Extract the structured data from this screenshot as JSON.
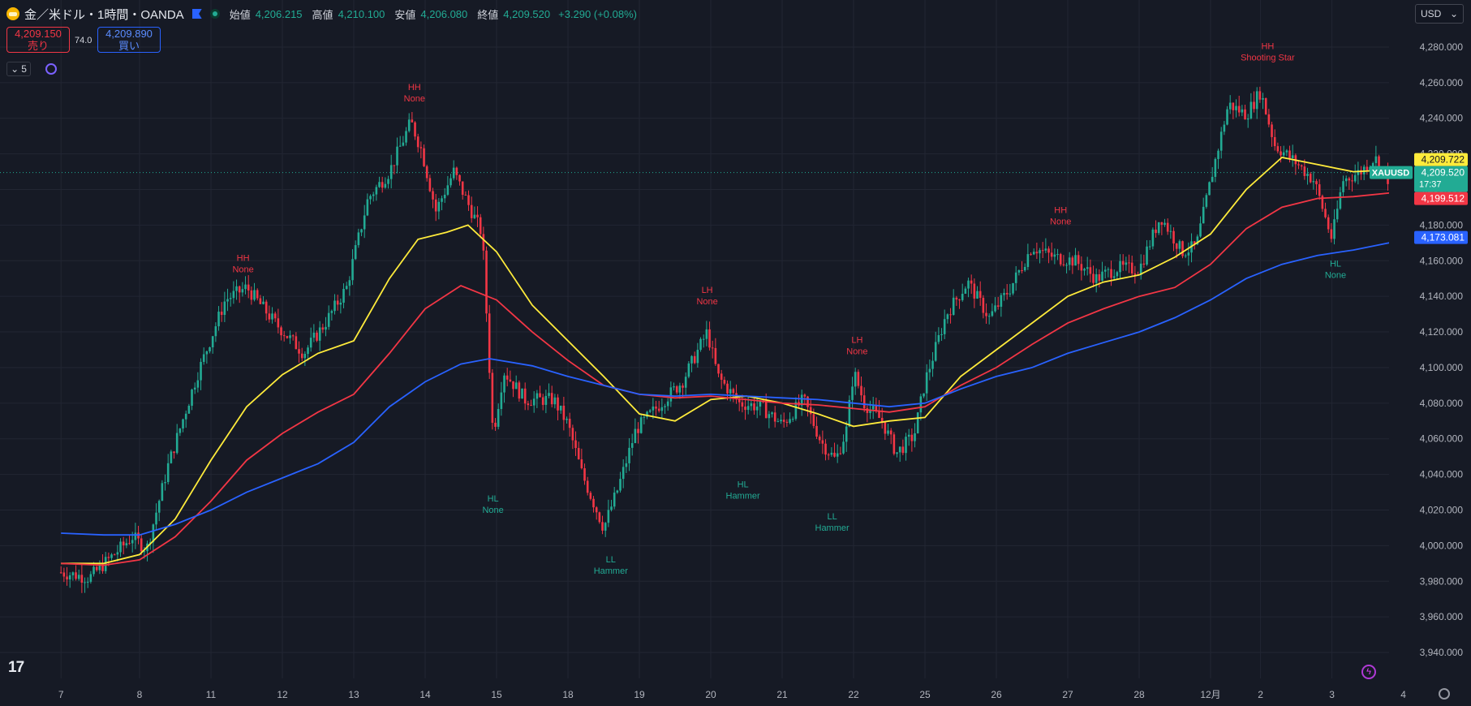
{
  "header": {
    "symbol_title": "金／米ドル・1時間・OANDA",
    "open_label": "始値",
    "open_value": "4,206.215",
    "high_label": "高値",
    "high_value": "4,210.100",
    "low_label": "安値",
    "low_value": "4,206.080",
    "close_label": "終値",
    "close_value": "4,209.520",
    "change": "+3.290 (+0.08%)",
    "icons": [
      "gold-coin-icon",
      "flag-icon",
      "market-open-dot-icon"
    ]
  },
  "trade": {
    "sell_price": "4,209.150",
    "sell_label": "売り",
    "spread": "74.0",
    "buy_price": "4,209.890",
    "buy_label": "買い"
  },
  "indicators": {
    "count": "5",
    "icons": [
      "chevron-down-icon",
      "indicator-sync-icon"
    ]
  },
  "currency_select": "USD",
  "logo_text": "17",
  "colors": {
    "background": "#161a25",
    "grid": "#222633",
    "up": "#22ab94",
    "down": "#f23645",
    "ma_fast": "#ffeb3b",
    "ma_mid": "#f23645",
    "ma_slow": "#2962ff",
    "text": "#b2b5be"
  },
  "chart_data": {
    "type": "candlestick",
    "symbol": "XAUUSD",
    "ylim": [
      3930,
      4290
    ],
    "y_ticks": [
      3940,
      3960,
      3980,
      4000,
      4020,
      4040,
      4060,
      4080,
      4100,
      4120,
      4140,
      4160,
      4180,
      4200,
      4220,
      4240,
      4260,
      4280
    ],
    "y_tick_labels": [
      "3,940.000",
      "3,960.000",
      "3,980.000",
      "4,000.000",
      "4,020.000",
      "4,040.000",
      "4,060.000",
      "4,080.000",
      "4,100.000",
      "4,120.000",
      "4,140.000",
      "4,160.000",
      "4,180.000",
      "4,200.000",
      "4,220.000",
      "4,240.000",
      "4,260.000",
      "4,280.000"
    ],
    "x_ticks": [
      {
        "label": "7",
        "t": -0.1
      },
      {
        "label": "8",
        "t": 1
      },
      {
        "label": "11",
        "t": 2
      },
      {
        "label": "12",
        "t": 3
      },
      {
        "label": "13",
        "t": 4
      },
      {
        "label": "14",
        "t": 5
      },
      {
        "label": "15",
        "t": 6
      },
      {
        "label": "18",
        "t": 7
      },
      {
        "label": "19",
        "t": 8
      },
      {
        "label": "20",
        "t": 9
      },
      {
        "label": "21",
        "t": 10
      },
      {
        "label": "22",
        "t": 11
      },
      {
        "label": "25",
        "t": 12
      },
      {
        "label": "26",
        "t": 13
      },
      {
        "label": "27",
        "t": 14
      },
      {
        "label": "28",
        "t": 15
      },
      {
        "label": "12月",
        "t": 16
      },
      {
        "label": "2",
        "t": 16.7
      },
      {
        "label": "3",
        "t": 17.7
      },
      {
        "label": "4",
        "t": 18.7
      }
    ],
    "price_path": [
      [
        -0.1,
        3985
      ],
      [
        0.3,
        3982
      ],
      [
        0.9,
        4005
      ],
      [
        1.1,
        3998
      ],
      [
        1.4,
        4045
      ],
      [
        1.8,
        4095
      ],
      [
        2.2,
        4138
      ],
      [
        2.5,
        4145
      ],
      [
        2.9,
        4125
      ],
      [
        3.3,
        4108
      ],
      [
        3.6,
        4125
      ],
      [
        3.9,
        4145
      ],
      [
        4.2,
        4195
      ],
      [
        4.5,
        4210
      ],
      [
        4.8,
        4238
      ],
      [
        4.95,
        4222
      ],
      [
        5.15,
        4188
      ],
      [
        5.4,
        4210
      ],
      [
        5.6,
        4192
      ],
      [
        5.8,
        4175
      ],
      [
        5.95,
        4062
      ],
      [
        6.1,
        4098
      ],
      [
        6.4,
        4082
      ],
      [
        6.8,
        4082
      ],
      [
        7.0,
        4068
      ],
      [
        7.2,
        4040
      ],
      [
        7.5,
        4010
      ],
      [
        7.7,
        4032
      ],
      [
        7.95,
        4065
      ],
      [
        8.3,
        4080
      ],
      [
        8.6,
        4092
      ],
      [
        8.95,
        4120
      ],
      [
        9.1,
        4095
      ],
      [
        9.4,
        4080
      ],
      [
        9.7,
        4078
      ],
      [
        10.0,
        4068
      ],
      [
        10.3,
        4082
      ],
      [
        10.55,
        4058
      ],
      [
        10.75,
        4048
      ],
      [
        10.9,
        4065
      ],
      [
        11.0,
        4098
      ],
      [
        11.15,
        4080
      ],
      [
        11.4,
        4070
      ],
      [
        11.6,
        4052
      ],
      [
        11.85,
        4062
      ],
      [
        12.0,
        4092
      ],
      [
        12.3,
        4130
      ],
      [
        12.6,
        4148
      ],
      [
        12.9,
        4128
      ],
      [
        13.2,
        4145
      ],
      [
        13.5,
        4168
      ],
      [
        13.8,
        4162
      ],
      [
        14.1,
        4160
      ],
      [
        14.4,
        4150
      ],
      [
        14.7,
        4156
      ],
      [
        15.0,
        4155
      ],
      [
        15.3,
        4185
      ],
      [
        15.6,
        4165
      ],
      [
        15.8,
        4168
      ],
      [
        16.0,
        4205
      ],
      [
        16.25,
        4248
      ],
      [
        16.5,
        4242
      ],
      [
        16.7,
        4255
      ],
      [
        16.9,
        4225
      ],
      [
        17.2,
        4215
      ],
      [
        17.45,
        4205
      ],
      [
        17.55,
        4192
      ],
      [
        17.7,
        4172
      ],
      [
        17.85,
        4205
      ],
      [
        18.1,
        4210
      ],
      [
        18.3,
        4218
      ],
      [
        18.5,
        4205
      ],
      [
        18.7,
        4235
      ],
      [
        18.85,
        4205
      ],
      [
        19.0,
        4209.52
      ]
    ],
    "moving_averages": [
      {
        "color_key": "ma_fast",
        "last_label": "4,209.722",
        "points": [
          [
            -0.1,
            3990
          ],
          [
            0.5,
            3990
          ],
          [
            1.0,
            3995
          ],
          [
            1.5,
            4015
          ],
          [
            2.0,
            4048
          ],
          [
            2.5,
            4078
          ],
          [
            3.0,
            4096
          ],
          [
            3.5,
            4108
          ],
          [
            4.0,
            4115
          ],
          [
            4.5,
            4150
          ],
          [
            4.9,
            4172
          ],
          [
            5.3,
            4176
          ],
          [
            5.6,
            4180
          ],
          [
            6.0,
            4165
          ],
          [
            6.5,
            4135
          ],
          [
            7.0,
            4115
          ],
          [
            7.5,
            4095
          ],
          [
            8.0,
            4074
          ],
          [
            8.5,
            4070
          ],
          [
            9.0,
            4082
          ],
          [
            9.5,
            4084
          ],
          [
            10.0,
            4080
          ],
          [
            10.5,
            4074
          ],
          [
            11.0,
            4067
          ],
          [
            11.5,
            4070
          ],
          [
            12.0,
            4072
          ],
          [
            12.5,
            4095
          ],
          [
            13.0,
            4110
          ],
          [
            13.5,
            4125
          ],
          [
            14.0,
            4140
          ],
          [
            14.5,
            4148
          ],
          [
            15.0,
            4152
          ],
          [
            15.5,
            4162
          ],
          [
            16.0,
            4175
          ],
          [
            16.5,
            4200
          ],
          [
            17.0,
            4218
          ],
          [
            17.5,
            4214
          ],
          [
            18.0,
            4210
          ],
          [
            18.5,
            4211
          ],
          [
            19.0,
            4209.72
          ]
        ]
      },
      {
        "color_key": "ma_mid",
        "last_label": "4,199.512",
        "points": [
          [
            -0.1,
            3990
          ],
          [
            0.5,
            3989
          ],
          [
            1.0,
            3992
          ],
          [
            1.5,
            4005
          ],
          [
            2.0,
            4025
          ],
          [
            2.5,
            4048
          ],
          [
            3.0,
            4063
          ],
          [
            3.5,
            4075
          ],
          [
            4.0,
            4085
          ],
          [
            4.5,
            4108
          ],
          [
            5.0,
            4133
          ],
          [
            5.5,
            4146
          ],
          [
            6.0,
            4138
          ],
          [
            6.5,
            4120
          ],
          [
            7.0,
            4104
          ],
          [
            7.5,
            4090
          ],
          [
            8.0,
            4085
          ],
          [
            8.5,
            4083
          ],
          [
            9.0,
            4084
          ],
          [
            9.5,
            4082
          ],
          [
            10.0,
            4080
          ],
          [
            10.5,
            4079
          ],
          [
            11.0,
            4077
          ],
          [
            11.5,
            4075
          ],
          [
            12.0,
            4078
          ],
          [
            12.5,
            4090
          ],
          [
            13.0,
            4100
          ],
          [
            13.5,
            4113
          ],
          [
            14.0,
            4125
          ],
          [
            14.5,
            4133
          ],
          [
            15.0,
            4140
          ],
          [
            15.5,
            4145
          ],
          [
            16.0,
            4158
          ],
          [
            16.5,
            4178
          ],
          [
            17.0,
            4190
          ],
          [
            17.5,
            4195
          ],
          [
            18.0,
            4196
          ],
          [
            18.5,
            4198
          ],
          [
            19.0,
            4199.51
          ]
        ]
      },
      {
        "color_key": "ma_slow",
        "last_label": "4,173.081",
        "points": [
          [
            -0.1,
            4007
          ],
          [
            0.5,
            4006
          ],
          [
            1.0,
            4006
          ],
          [
            1.5,
            4012
          ],
          [
            2.0,
            4020
          ],
          [
            2.5,
            4030
          ],
          [
            3.0,
            4038
          ],
          [
            3.5,
            4046
          ],
          [
            4.0,
            4058
          ],
          [
            4.5,
            4078
          ],
          [
            5.0,
            4092
          ],
          [
            5.5,
            4102
          ],
          [
            5.9,
            4105
          ],
          [
            6.5,
            4101
          ],
          [
            7.0,
            4095
          ],
          [
            7.5,
            4090
          ],
          [
            8.0,
            4085
          ],
          [
            8.5,
            4084
          ],
          [
            9.0,
            4085
          ],
          [
            9.5,
            4084
          ],
          [
            10.0,
            4083
          ],
          [
            10.5,
            4082
          ],
          [
            11.0,
            4080
          ],
          [
            11.5,
            4078
          ],
          [
            12.0,
            4080
          ],
          [
            12.5,
            4088
          ],
          [
            13.0,
            4095
          ],
          [
            13.5,
            4100
          ],
          [
            14.0,
            4108
          ],
          [
            14.5,
            4114
          ],
          [
            15.0,
            4120
          ],
          [
            15.5,
            4128
          ],
          [
            16.0,
            4138
          ],
          [
            16.5,
            4150
          ],
          [
            17.0,
            4158
          ],
          [
            17.5,
            4163
          ],
          [
            18.0,
            4166
          ],
          [
            18.5,
            4170
          ],
          [
            19.0,
            4173.08
          ]
        ]
      }
    ],
    "last_price": {
      "value": "4,209.520",
      "countdown": "17:37",
      "symbol": "XAUUSD"
    },
    "pivot_labels": [
      {
        "t": 2.45,
        "price": 4148,
        "above": true,
        "kind": "HH",
        "pattern": "None"
      },
      {
        "t": 4.85,
        "price": 4244,
        "above": true,
        "kind": "HH",
        "pattern": "None"
      },
      {
        "t": 5.95,
        "price": 4032,
        "above": false,
        "kind": "HL",
        "pattern": "None"
      },
      {
        "t": 7.6,
        "price": 3998,
        "above": false,
        "kind": "LL",
        "pattern": "Hammer"
      },
      {
        "t": 8.95,
        "price": 4130,
        "above": true,
        "kind": "LH",
        "pattern": "None"
      },
      {
        "t": 9.45,
        "price": 4040,
        "above": false,
        "kind": "HL",
        "pattern": "Hammer"
      },
      {
        "t": 10.7,
        "price": 4022,
        "above": false,
        "kind": "LL",
        "pattern": "Hammer"
      },
      {
        "t": 11.05,
        "price": 4102,
        "above": true,
        "kind": "LH",
        "pattern": "None"
      },
      {
        "t": 13.9,
        "price": 4175,
        "above": true,
        "kind": "HH",
        "pattern": "None"
      },
      {
        "t": 16.8,
        "price": 4267,
        "above": true,
        "kind": "HH",
        "pattern": "Shooting Star"
      },
      {
        "t": 17.75,
        "price": 4164,
        "above": false,
        "kind": "HL",
        "pattern": "None"
      }
    ]
  }
}
